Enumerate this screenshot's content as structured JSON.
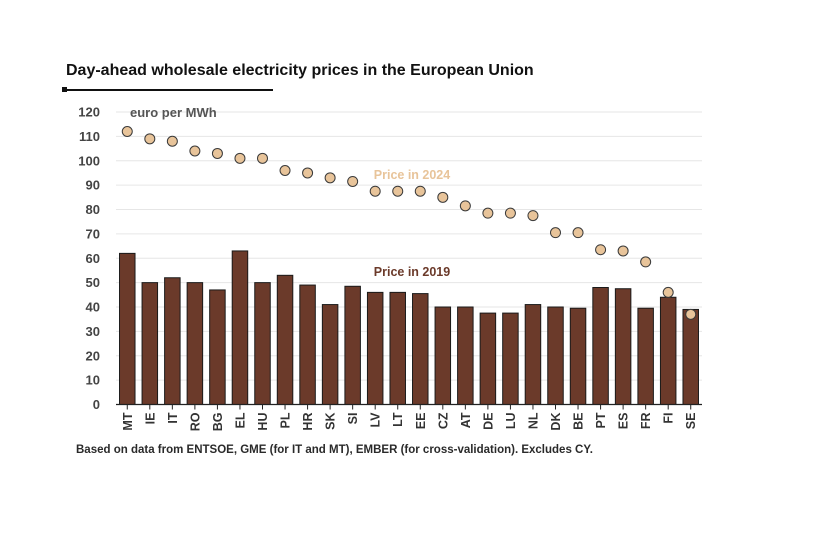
{
  "chart_data": {
    "type": "bar",
    "title": "Day-ahead wholesale electricity prices in the European Union",
    "ylabel": "euro per MWh",
    "ylim": [
      0,
      120
    ],
    "yticks": [
      0,
      10,
      20,
      30,
      40,
      50,
      60,
      70,
      80,
      90,
      100,
      110,
      120
    ],
    "grid": true,
    "categories": [
      "MT",
      "IE",
      "IT",
      "RO",
      "BG",
      "EL",
      "HU",
      "PL",
      "HR",
      "SK",
      "SI",
      "LV",
      "LT",
      "EE",
      "CZ",
      "AT",
      "DE",
      "LU",
      "NL",
      "DK",
      "BE",
      "PT",
      "ES",
      "FR",
      "FI",
      "SE"
    ],
    "series": [
      {
        "name": "Price in 2019",
        "mark": "bar",
        "color": "#6b3a2a",
        "values": [
          62,
          50,
          52,
          50,
          47,
          63,
          50,
          53,
          49,
          41,
          48.5,
          46,
          46,
          45.5,
          40,
          40,
          37.5,
          37.5,
          41,
          40,
          39.5,
          48,
          47.5,
          39.5,
          44,
          39
        ]
      },
      {
        "name": "Price in 2024",
        "mark": "point",
        "color": "#e8c49a",
        "values": [
          112,
          109,
          108,
          104,
          103,
          101,
          101,
          96,
          95,
          93,
          91.5,
          87.5,
          87.5,
          87.5,
          85,
          81.5,
          78.5,
          78.5,
          77.5,
          70.5,
          70.5,
          63.5,
          63,
          58.5,
          46,
          37
        ]
      }
    ],
    "source_note": "Based on data from ENTSOE, GME (for IT and MT), EMBER (for cross-validation). Excludes CY."
  }
}
